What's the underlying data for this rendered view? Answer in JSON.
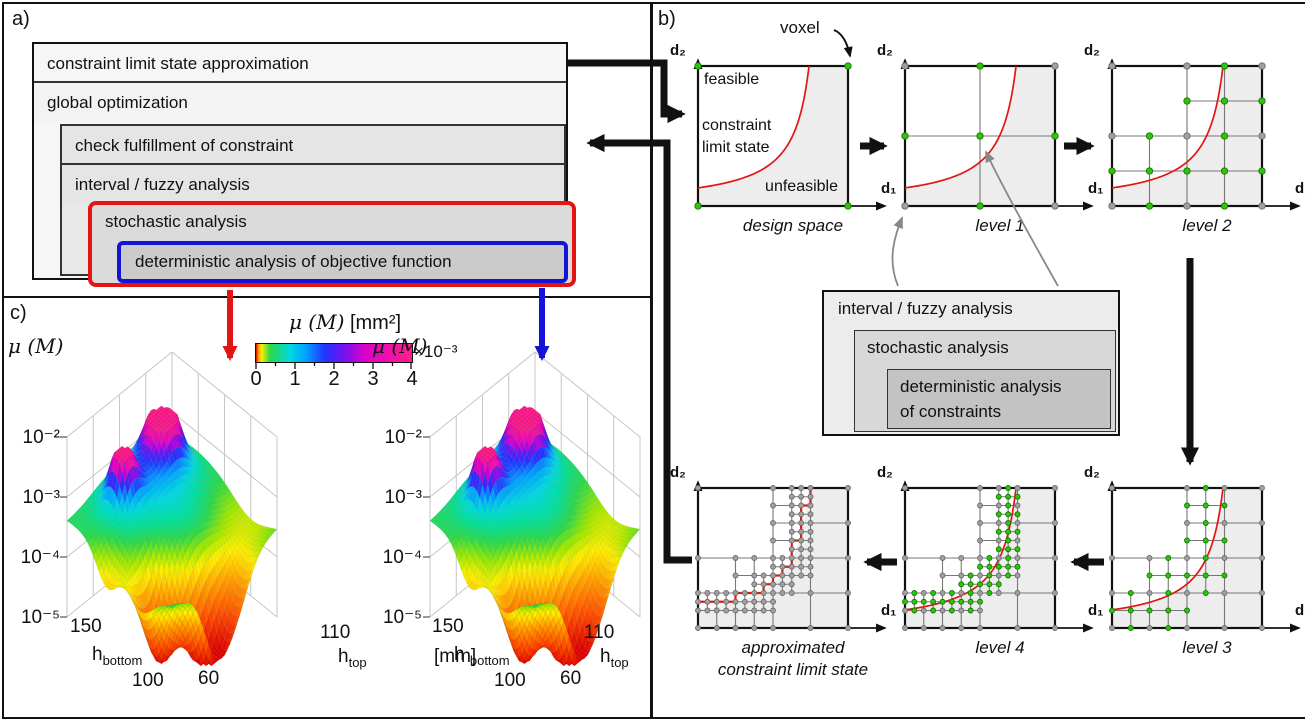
{
  "panel_a": {
    "label": "a)",
    "box_constraint": "constraint limit state approximation",
    "box_global": "global optimization",
    "box_check": "check fulfillment of constraint",
    "box_interval": "interval / fuzzy analysis",
    "box_stochastic": "stochastic analysis",
    "box_deterministic": "deterministic analysis of objective function"
  },
  "panel_b": {
    "label": "b)",
    "voxel": "voxel",
    "feasible": "feasible",
    "unfeasible": "unfeasible",
    "cls_line1": "constraint",
    "cls_line2": "limit state",
    "axis_d1": "d₁",
    "axis_d2": "d₂",
    "grids": [
      {
        "caption": "design space"
      },
      {
        "caption": "level 1"
      },
      {
        "caption": "level 2"
      },
      {
        "caption": "level 3"
      },
      {
        "caption": "level 4"
      },
      {
        "caption": "approximated",
        "caption2": "constraint limit state"
      }
    ],
    "nest_interval": "interval / fuzzy analysis",
    "nest_stochastic": "stochastic analysis",
    "nest_det1": "deterministic analysis",
    "nest_det2": "of constraints"
  },
  "panel_c": {
    "label": "c)",
    "colorbar": {
      "title_math": "μ (M)",
      "title_unit": "[mm²]",
      "ticks": [
        "0",
        "1",
        "2",
        "3",
        "4"
      ],
      "multiplier": "×10⁻³"
    },
    "z_title": "μ (M)",
    "z_ticks": [
      "10⁻²",
      "10⁻³",
      "10⁻⁴",
      "10⁻⁵"
    ],
    "h_base": "h",
    "h_bottom_sub": "bottom",
    "h_top_sub": "top",
    "hb_tick_150": "150",
    "hb_tick_100": "100",
    "ht_tick_110": "110",
    "ht_tick_60": "60",
    "unit": "[mm]"
  },
  "colors": {
    "accent_red": "#e31414",
    "accent_blue": "#1414d9",
    "voxel_green": "#2dc40e",
    "dot_gray": "#a0a0a0",
    "curve_red": "#e01812",
    "shade": "#ededed"
  },
  "chart_data": [
    {
      "type": "surface",
      "linked_box": "stochastic analysis",
      "arrow_color": "red",
      "z_label": "μ (M)",
      "z_unit": "mm²",
      "z_scale": "log",
      "z_ticks": [
        "10⁻²",
        "10⁻³",
        "10⁻⁴",
        "10⁻⁵"
      ],
      "x_label": "h_top",
      "x_ticks": [
        110,
        60
      ],
      "y_label": "h_bottom",
      "y_ticks": [
        150,
        100
      ],
      "axis_unit": "[mm]",
      "colorbar_ticks": [
        0,
        1,
        2,
        3,
        4
      ],
      "colorbar_multiplier": "×10⁻³",
      "colorbar_range": [
        0,
        0.004
      ]
    },
    {
      "type": "surface",
      "linked_box": "deterministic analysis of objective function",
      "arrow_color": "blue",
      "z_label": "μ (M)",
      "z_unit": "mm²",
      "z_scale": "log",
      "z_ticks": [
        "10⁻²",
        "10⁻³",
        "10⁻⁴",
        "10⁻⁵"
      ],
      "x_label": "h_top",
      "x_ticks": [
        110,
        60
      ],
      "y_label": "h_bottom",
      "y_ticks": [
        150,
        100
      ],
      "colorbar_ticks": [
        0,
        1,
        2,
        3,
        4
      ],
      "colorbar_multiplier": "×10⁻³",
      "colorbar_range": [
        0,
        0.004
      ]
    }
  ]
}
